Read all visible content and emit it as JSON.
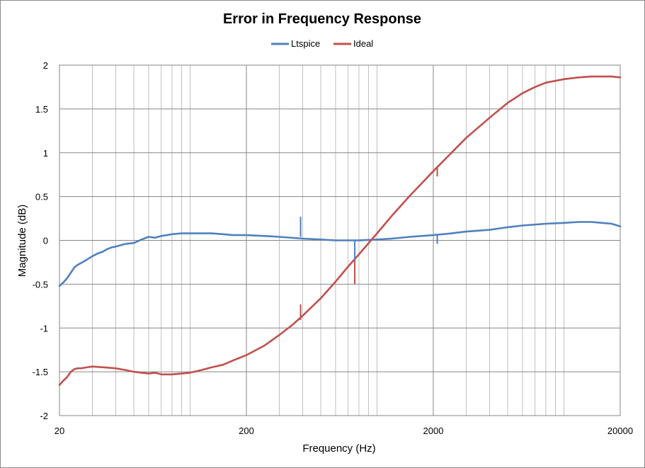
{
  "chart_data": {
    "type": "line",
    "title": "Error in Frequency Response",
    "xlabel": "Frequency (Hz)",
    "ylabel": "Magnitude (dB)",
    "x_scale": "log",
    "xlim": [
      20,
      20000
    ],
    "ylim": [
      -2,
      2
    ],
    "x_ticks": [
      "20",
      "200",
      "2000",
      "20000"
    ],
    "y_ticks": [
      "2",
      "1.5",
      "1",
      "0.5",
      "0",
      "-0.5",
      "-1",
      "-1.5",
      "-2"
    ],
    "grid": true,
    "legend_position": "top",
    "series": [
      {
        "name": "Ltspice",
        "color": "#4f81bd",
        "x": [
          20,
          21,
          22,
          23,
          24,
          25,
          26,
          28,
          30,
          32,
          34,
          36,
          38,
          40,
          45,
          50,
          55,
          60,
          65,
          70,
          75,
          80,
          90,
          100,
          110,
          120,
          130,
          150,
          170,
          200,
          250,
          300,
          400,
          500,
          600,
          700,
          800,
          1000,
          1200,
          1500,
          2000,
          2500,
          3000,
          4000,
          5000,
          6000,
          7000,
          8000,
          10000,
          12000,
          14000,
          16000,
          18000,
          20000
        ],
        "y": [
          -0.52,
          -0.48,
          -0.43,
          -0.37,
          -0.31,
          -0.28,
          -0.26,
          -0.22,
          -0.18,
          -0.15,
          -0.13,
          -0.1,
          -0.08,
          -0.07,
          -0.04,
          -0.03,
          0.01,
          0.04,
          0.03,
          0.05,
          0.06,
          0.07,
          0.08,
          0.08,
          0.08,
          0.08,
          0.08,
          0.07,
          0.06,
          0.06,
          0.05,
          0.04,
          0.02,
          0.01,
          0.0,
          0.0,
          0.0,
          0.01,
          0.02,
          0.04,
          0.06,
          0.08,
          0.1,
          0.12,
          0.15,
          0.17,
          0.18,
          0.19,
          0.2,
          0.21,
          0.21,
          0.2,
          0.19,
          0.16
        ]
      },
      {
        "name": "Ideal",
        "color": "#c0504d",
        "x": [
          20,
          21,
          22,
          23,
          24,
          25,
          26,
          28,
          30,
          35,
          40,
          45,
          50,
          55,
          60,
          65,
          70,
          80,
          90,
          100,
          110,
          120,
          130,
          150,
          170,
          200,
          250,
          300,
          350,
          400,
          500,
          600,
          700,
          800,
          1000,
          1200,
          1500,
          2000,
          2500,
          3000,
          4000,
          5000,
          6000,
          7000,
          8000,
          10000,
          12000,
          14000,
          16000,
          18000,
          20000
        ],
        "y": [
          -1.65,
          -1.6,
          -1.56,
          -1.5,
          -1.47,
          -1.46,
          -1.46,
          -1.45,
          -1.44,
          -1.45,
          -1.46,
          -1.48,
          -1.5,
          -1.51,
          -1.52,
          -1.51,
          -1.53,
          -1.53,
          -1.52,
          -1.51,
          -1.49,
          -1.47,
          -1.45,
          -1.42,
          -1.37,
          -1.31,
          -1.2,
          -1.08,
          -0.97,
          -0.86,
          -0.66,
          -0.47,
          -0.3,
          -0.16,
          0.08,
          0.28,
          0.51,
          0.79,
          1.0,
          1.17,
          1.4,
          1.57,
          1.68,
          1.75,
          1.8,
          1.84,
          1.86,
          1.87,
          1.87,
          1.87,
          1.86
        ]
      }
    ],
    "spikes": [
      {
        "series": "Ltspice",
        "x": 390,
        "from": 0.04,
        "to": 0.27
      },
      {
        "series": "Ltspice",
        "x": 760,
        "from": 0.0,
        "to": -0.23
      },
      {
        "series": "Ltspice",
        "x": 2100,
        "from": 0.06,
        "to": -0.04
      },
      {
        "series": "Ideal",
        "x": 390,
        "from": -0.91,
        "to": -0.73
      },
      {
        "series": "Ideal",
        "x": 760,
        "from": -0.23,
        "to": -0.5
      },
      {
        "series": "Ideal",
        "x": 2100,
        "from": 0.83,
        "to": 0.73
      }
    ]
  }
}
